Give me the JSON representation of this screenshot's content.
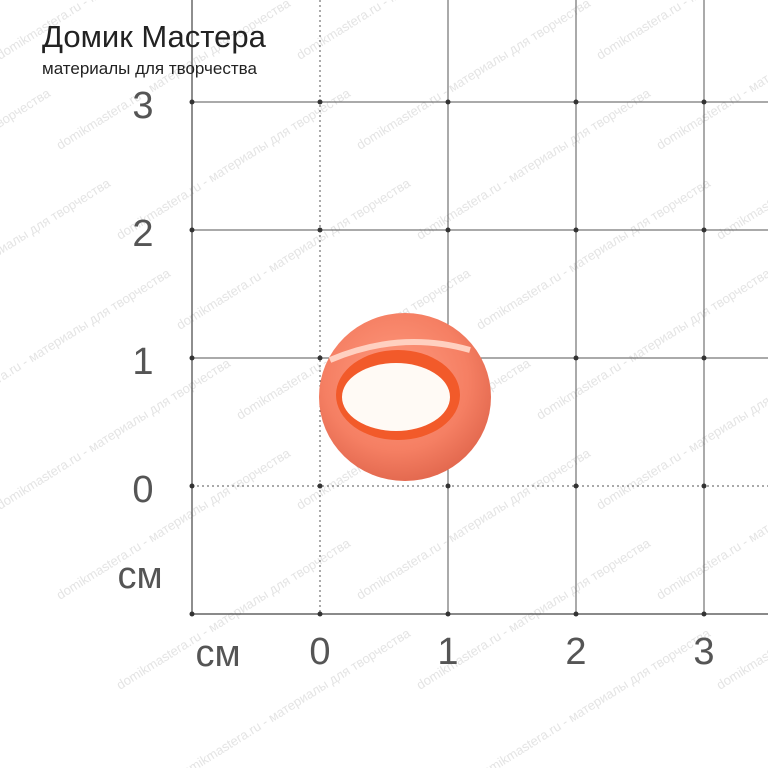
{
  "brand": {
    "title": "Домик Мастера",
    "subtitle": "материалы для творчества"
  },
  "watermark": "domikmastera.ru - материалы для творчества",
  "grid": {
    "x_unit": "см",
    "y_unit": "см",
    "x_labels": [
      0,
      1,
      2,
      3
    ],
    "y_labels": [
      3,
      2,
      1,
      0
    ]
  }
}
